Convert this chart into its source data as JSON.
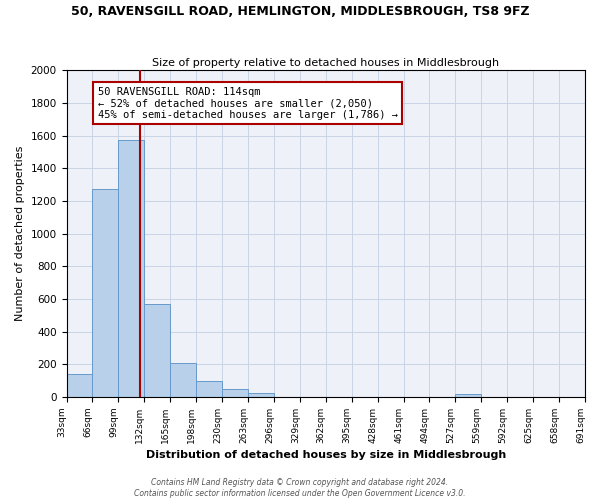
{
  "title": "50, RAVENSGILL ROAD, HEMLINGTON, MIDDLESBROUGH, TS8 9FZ",
  "subtitle": "Size of property relative to detached houses in Middlesbrough",
  "xlabel": "Distribution of detached houses by size in Middlesbrough",
  "ylabel": "Number of detached properties",
  "bar_values": [
    140,
    1270,
    1570,
    570,
    210,
    95,
    50,
    25,
    0,
    0,
    0,
    0,
    0,
    0,
    0,
    20,
    0,
    0,
    0,
    0
  ],
  "tick_labels": [
    "33sqm",
    "66sqm",
    "99sqm",
    "132sqm",
    "165sqm",
    "198sqm",
    "230sqm",
    "263sqm",
    "296sqm",
    "329sqm",
    "362sqm",
    "395sqm",
    "428sqm",
    "461sqm",
    "494sqm",
    "527sqm",
    "559sqm",
    "592sqm",
    "625sqm",
    "658sqm",
    "691sqm"
  ],
  "bar_color": "#b8d0ea",
  "bar_edge_color": "#6699cc",
  "vline_x_bar_index": 2.85,
  "vline_color": "#aa0000",
  "ylim": [
    0,
    2000
  ],
  "yticks": [
    0,
    200,
    400,
    600,
    800,
    1000,
    1200,
    1400,
    1600,
    1800,
    2000
  ],
  "annotation_title": "50 RAVENSGILL ROAD: 114sqm",
  "annotation_line1": "← 52% of detached houses are smaller (2,050)",
  "annotation_line2": "45% of semi-detached houses are larger (1,786) →",
  "footer1": "Contains HM Land Registry data © Crown copyright and database right 2024.",
  "footer2": "Contains public sector information licensed under the Open Government Licence v3.0.",
  "background_color": "#eef2f8",
  "grid_color": "#c8d4e4",
  "title_fontsize": 9,
  "subtitle_fontsize": 8,
  "xlabel_fontsize": 8,
  "ylabel_fontsize": 8,
  "tick_fontsize": 6.5,
  "ytick_fontsize": 7.5,
  "footer_fontsize": 5.5,
  "annot_fontsize": 7.5
}
